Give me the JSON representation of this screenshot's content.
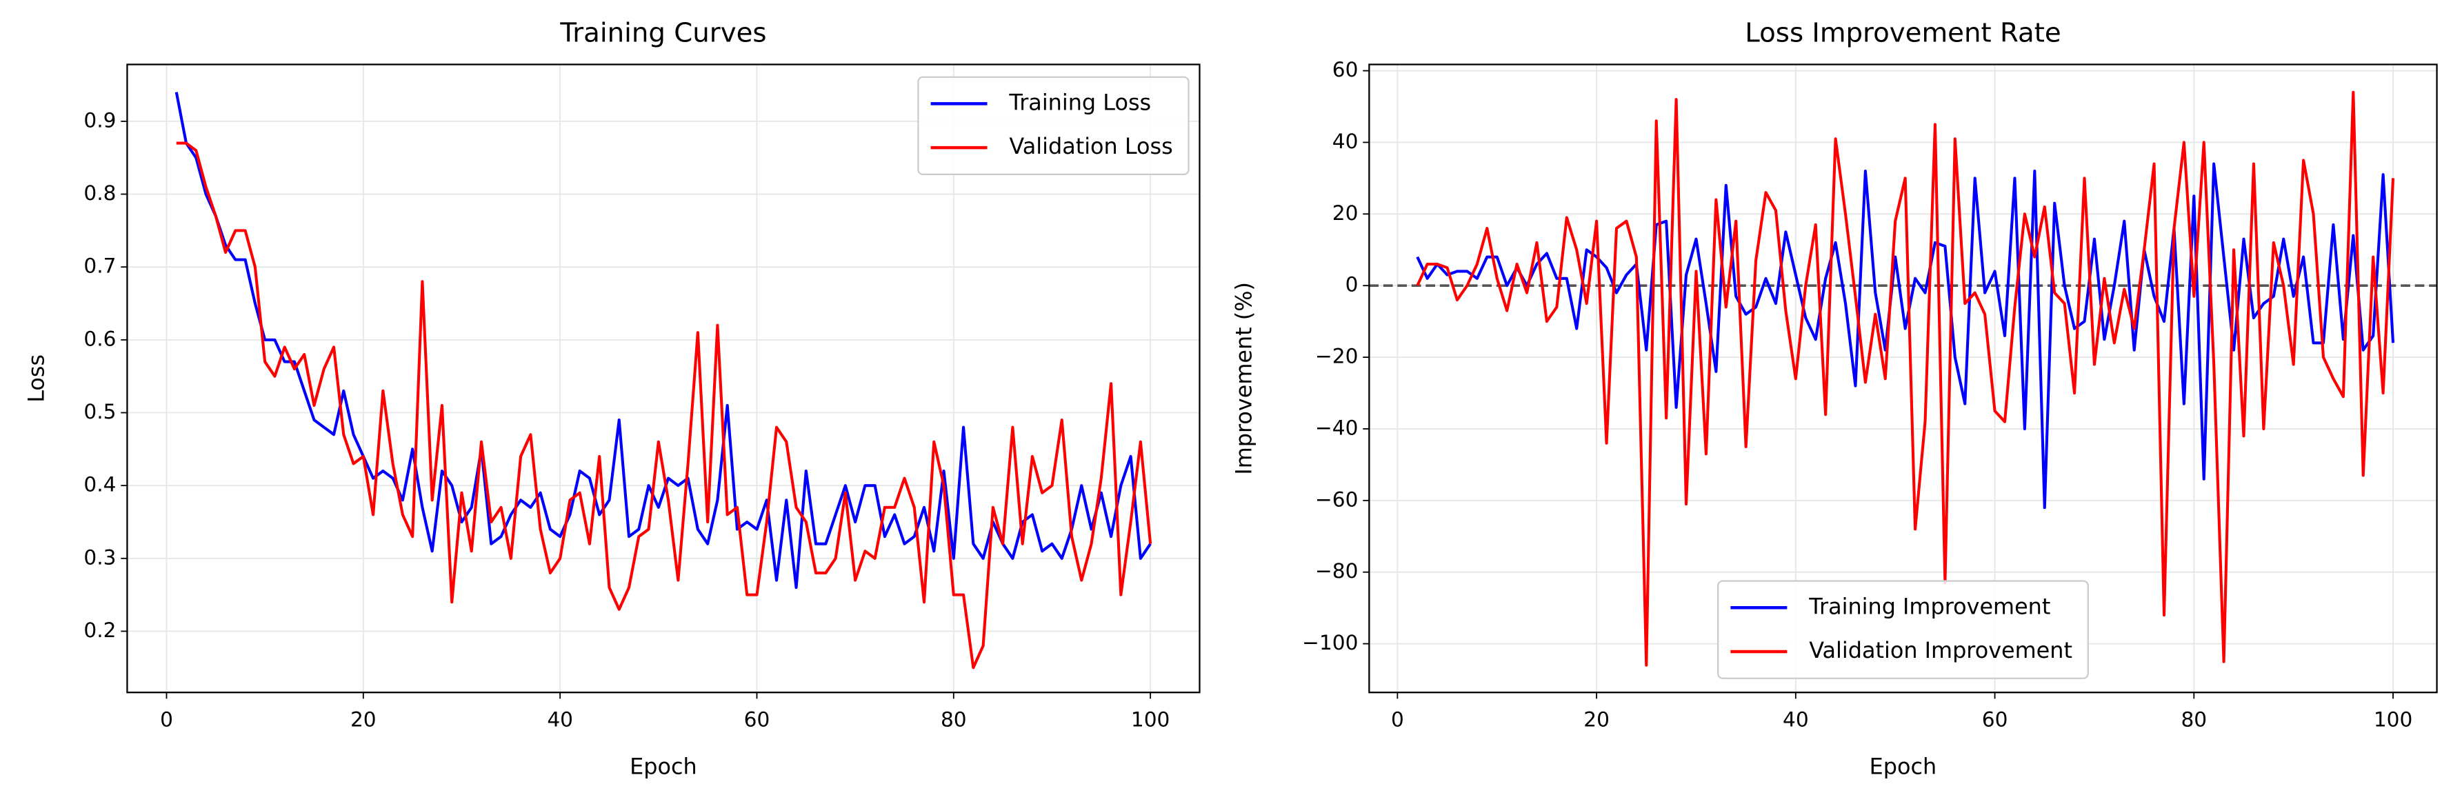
{
  "chart_data": [
    {
      "type": "line",
      "title": "Training Curves",
      "xlabel": "Epoch",
      "ylabel": "Loss",
      "x": [
        1,
        2,
        3,
        4,
        5,
        6,
        7,
        8,
        9,
        10,
        11,
        12,
        13,
        14,
        15,
        16,
        17,
        18,
        19,
        20,
        21,
        22,
        23,
        24,
        25,
        26,
        27,
        28,
        29,
        30,
        31,
        32,
        33,
        34,
        35,
        36,
        37,
        38,
        39,
        40,
        41,
        42,
        43,
        44,
        45,
        46,
        47,
        48,
        49,
        50,
        51,
        52,
        53,
        54,
        55,
        56,
        57,
        58,
        59,
        60,
        61,
        62,
        63,
        64,
        65,
        66,
        67,
        68,
        69,
        70,
        71,
        72,
        73,
        74,
        75,
        76,
        77,
        78,
        79,
        80,
        81,
        82,
        83,
        84,
        85,
        86,
        87,
        88,
        89,
        90,
        91,
        92,
        93,
        94,
        95,
        96,
        97,
        98,
        99,
        100
      ],
      "series": [
        {
          "name": "Training Loss",
          "color": "#0000ff",
          "values": [
            0.94,
            0.87,
            0.85,
            0.8,
            0.77,
            0.73,
            0.71,
            0.71,
            0.65,
            0.6,
            0.6,
            0.57,
            0.57,
            0.53,
            0.49,
            0.48,
            0.47,
            0.53,
            0.47,
            0.44,
            0.41,
            0.42,
            0.41,
            0.38,
            0.45,
            0.37,
            0.31,
            0.42,
            0.4,
            0.35,
            0.37,
            0.45,
            0.32,
            0.33,
            0.36,
            0.38,
            0.37,
            0.39,
            0.34,
            0.33,
            0.36,
            0.42,
            0.41,
            0.36,
            0.38,
            0.49,
            0.33,
            0.34,
            0.4,
            0.37,
            0.41,
            0.4,
            0.41,
            0.34,
            0.32,
            0.38,
            0.51,
            0.34,
            0.35,
            0.34,
            0.38,
            0.27,
            0.38,
            0.26,
            0.42,
            0.32,
            0.32,
            0.36,
            0.4,
            0.35,
            0.4,
            0.4,
            0.33,
            0.36,
            0.32,
            0.33,
            0.37,
            0.31,
            0.42,
            0.3,
            0.48,
            0.32,
            0.3,
            0.35,
            0.32,
            0.3,
            0.35,
            0.36,
            0.31,
            0.32,
            0.3,
            0.34,
            0.4,
            0.34,
            0.39,
            0.33,
            0.4,
            0.44,
            0.3,
            0.32
          ]
        },
        {
          "name": "Validation Loss",
          "color": "#ff0000",
          "values": [
            0.87,
            0.87,
            0.86,
            0.81,
            0.77,
            0.72,
            0.75,
            0.75,
            0.7,
            0.57,
            0.55,
            0.59,
            0.56,
            0.58,
            0.51,
            0.56,
            0.59,
            0.47,
            0.43,
            0.44,
            0.36,
            0.53,
            0.43,
            0.36,
            0.33,
            0.68,
            0.38,
            0.51,
            0.24,
            0.39,
            0.31,
            0.46,
            0.35,
            0.37,
            0.3,
            0.44,
            0.47,
            0.34,
            0.28,
            0.3,
            0.38,
            0.39,
            0.32,
            0.44,
            0.26,
            0.23,
            0.26,
            0.33,
            0.34,
            0.46,
            0.38,
            0.27,
            0.43,
            0.61,
            0.35,
            0.62,
            0.36,
            0.37,
            0.25,
            0.25,
            0.35,
            0.48,
            0.46,
            0.37,
            0.35,
            0.28,
            0.28,
            0.3,
            0.39,
            0.27,
            0.31,
            0.3,
            0.37,
            0.37,
            0.41,
            0.37,
            0.24,
            0.46,
            0.4,
            0.25,
            0.25,
            0.15,
            0.18,
            0.37,
            0.32,
            0.48,
            0.32,
            0.44,
            0.39,
            0.4,
            0.49,
            0.33,
            0.27,
            0.32,
            0.41,
            0.54,
            0.25,
            0.35,
            0.46,
            0.32
          ]
        }
      ],
      "xlim": [
        -4,
        105
      ],
      "ylim": [
        0.116,
        0.978
      ],
      "xticks": [
        0,
        20,
        40,
        60,
        80,
        100
      ],
      "yticks": [
        0.2,
        0.3,
        0.4,
        0.5,
        0.6,
        0.7,
        0.8,
        0.9
      ],
      "grid": true,
      "legend": "upper right"
    },
    {
      "type": "line",
      "title": "Loss Improvement Rate",
      "xlabel": "Epoch",
      "ylabel": "Improvement (%)",
      "x": [
        2,
        3,
        4,
        5,
        6,
        7,
        8,
        9,
        10,
        11,
        12,
        13,
        14,
        15,
        16,
        17,
        18,
        19,
        20,
        21,
        22,
        23,
        24,
        25,
        26,
        27,
        28,
        29,
        30,
        31,
        32,
        33,
        34,
        35,
        36,
        37,
        38,
        39,
        40,
        41,
        42,
        43,
        44,
        45,
        46,
        47,
        48,
        49,
        50,
        51,
        52,
        53,
        54,
        55,
        56,
        57,
        58,
        59,
        60,
        61,
        62,
        63,
        64,
        65,
        66,
        67,
        68,
        69,
        70,
        71,
        72,
        73,
        74,
        75,
        76,
        77,
        78,
        79,
        80,
        81,
        82,
        83,
        84,
        85,
        86,
        87,
        88,
        89,
        90,
        91,
        92,
        93,
        94,
        95,
        96,
        97,
        98,
        99,
        100
      ],
      "series": [
        {
          "name": "Training Improvement",
          "color": "#0000ff",
          "values": [
            8,
            2,
            6,
            3,
            4,
            4,
            2,
            8,
            8,
            0,
            5,
            0,
            6,
            9,
            2,
            2,
            -12,
            10,
            8,
            5,
            -2,
            3,
            6,
            -18,
            17,
            18,
            -34,
            3,
            13,
            -5,
            -24,
            28,
            -3,
            -8,
            -6,
            2,
            -5,
            15,
            3,
            -9,
            -15,
            2,
            12,
            -5,
            -28,
            32,
            -2,
            -18,
            8,
            -12,
            2,
            -2,
            12,
            11,
            -20,
            -33,
            30,
            -2,
            4,
            -14,
            30,
            -40,
            32,
            -62,
            23,
            0,
            -12,
            -10,
            13,
            -15,
            0,
            18,
            -18,
            10,
            -3,
            -10,
            16,
            -33,
            25,
            -54,
            34,
            8,
            -18,
            13,
            -9,
            -5,
            -3,
            13,
            -3,
            8,
            -16,
            -16,
            17,
            -15,
            14,
            -18,
            -14,
            31,
            -16
          ]
        },
        {
          "name": "Validation Improvement",
          "color": "#ff0000",
          "values": [
            0,
            6,
            6,
            5,
            -4,
            0,
            6,
            16,
            2,
            -7,
            6,
            -2,
            12,
            -10,
            -6,
            19,
            10,
            -5,
            18,
            -44,
            16,
            18,
            8,
            -106,
            46,
            -37,
            52,
            -61,
            4,
            -47,
            24,
            -6,
            18,
            -45,
            7,
            26,
            21,
            -7,
            -26,
            0,
            17,
            -36,
            41,
            20,
            -3,
            -27,
            -8,
            -26,
            18,
            30,
            -68,
            -38,
            45,
            -83,
            41,
            -5,
            -2,
            -8,
            -35,
            -38,
            -6,
            20,
            8,
            22,
            -2,
            -5,
            -30,
            30,
            -22,
            2,
            -16,
            -1,
            -12,
            10,
            34,
            -92,
            16,
            40,
            -3,
            40,
            -22,
            -105,
            10,
            -42,
            34,
            -40,
            12,
            0,
            -22,
            35,
            20,
            -20,
            -26,
            -31,
            54,
            -53,
            8,
            -30,
            30
          ]
        }
      ],
      "xlim": [
        -2.84,
        104.4
      ],
      "ylim": [
        -113.6,
        61.75
      ],
      "xticks": [
        0,
        20,
        40,
        60,
        80,
        100
      ],
      "yticks": [
        {
          "value": -100,
          "label": "−100"
        },
        {
          "value": -80,
          "label": "−80"
        },
        {
          "value": -60,
          "label": "−60"
        },
        {
          "value": -40,
          "label": "−40"
        },
        {
          "value": -20,
          "label": "−20"
        },
        0,
        20,
        40,
        60
      ],
      "hline": 0,
      "grid": true,
      "legend": "lower center"
    }
  ]
}
